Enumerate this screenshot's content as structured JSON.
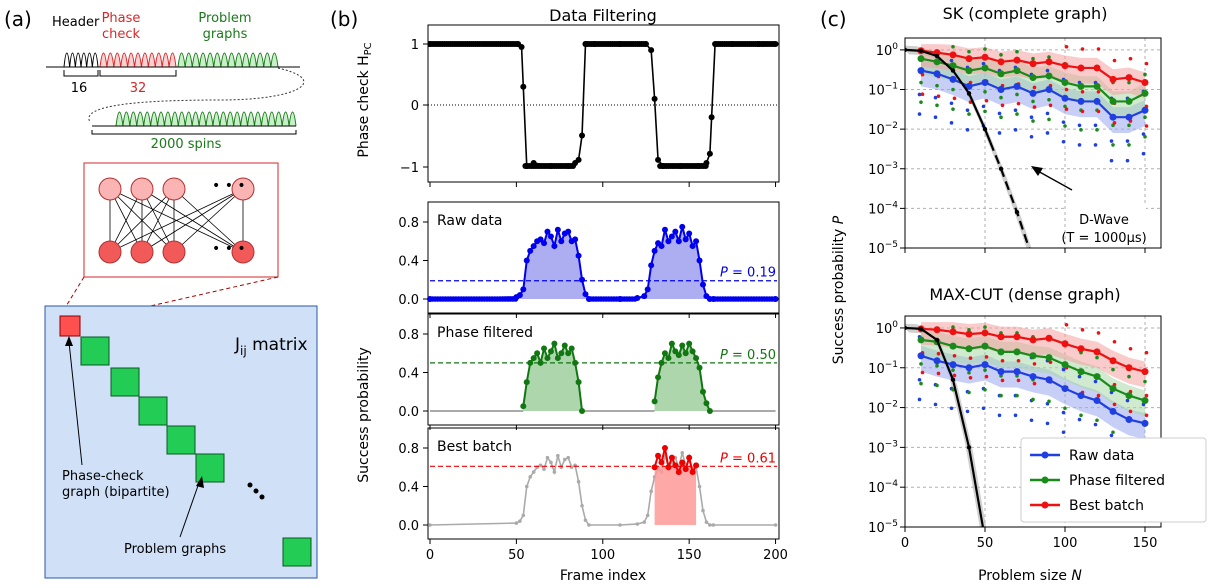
{
  "panel_a": {
    "label": "(a)",
    "header": "Header",
    "phase_check": [
      "Phase",
      "check"
    ],
    "problem_graphs_top": [
      "Problem",
      "graphs"
    ],
    "count_16": "16",
    "count_32": "32",
    "spins": "2000 spins",
    "matrix": "J",
    "matrix_sub": "ij",
    "matrix_suffix": " matrix",
    "phase_check_graph": [
      "Phase-check",
      "graph (bipartite)"
    ],
    "problem_graphs": "Problem graphs",
    "ellipsis": "• • •",
    "colors": {
      "header": "#000000",
      "phase": "#d62728",
      "problem": "#1a7a1a",
      "matrix_bg": "#cfe0f7",
      "block": "#22cc55",
      "red_block": "#ff5050"
    }
  },
  "panel_b": {
    "label": "(b)",
    "title": "Data Filtering",
    "top_ylabel": "Phase check H",
    "top_ylabel_sub": "PC",
    "ylabel": "Success probability",
    "xlabel": "Frame index",
    "xticks": [
      "0",
      "50",
      "100",
      "150",
      "200"
    ],
    "top_yticks": [
      "1",
      "0",
      "−1"
    ],
    "yticks": [
      "0.0",
      "0.4",
      "0.8"
    ],
    "sub": [
      {
        "label": "Raw data",
        "p_label": "P",
        "p_value": " = 0.19",
        "color": "#0000ee",
        "fill": "#9999ee"
      },
      {
        "label": "Phase filtered",
        "p_label": "P",
        "p_value": " = 0.50",
        "color": "#117711",
        "fill": "#99cc99"
      },
      {
        "label": "Best batch",
        "p_label": "P",
        "p_value": " = 0.61",
        "color": "#ee0000",
        "fill": "#ff9999"
      }
    ]
  },
  "panel_c": {
    "label": "(c)",
    "title_top": "SK (complete graph)",
    "title_bottom": "MAX-CUT (dense graph)",
    "ylabel": "Success probability",
    "ylabel_var": "P",
    "xlabel": "Problem size",
    "xlabel_var": "N",
    "xticks": [
      "0",
      "50",
      "100",
      "150"
    ],
    "ytick_base": "10",
    "ytick_exps": [
      "0",
      "−1",
      "−2",
      "−3",
      "−4",
      "−5"
    ],
    "annotation": [
      "D-Wave",
      "(T = 1000μs)"
    ],
    "legend": [
      {
        "label": "Raw data",
        "color": "#1f3fe0"
      },
      {
        "label": "Phase filtered",
        "color": "#1a8a1a"
      },
      {
        "label": "Best batch",
        "color": "#ee1111"
      }
    ]
  },
  "chart_data": [
    {
      "type": "line",
      "title": "Data Filtering",
      "xlabel": "",
      "ylabel": "Phase check H_PC",
      "xlim": [
        0,
        200
      ],
      "ylim": [
        -1.2,
        1.2
      ],
      "series": [
        {
          "name": "",
          "x": [
            0,
            51,
            53,
            54,
            56,
            60,
            70,
            80,
            84,
            86,
            88,
            90,
            95,
            110,
            125,
            128,
            130,
            132,
            135,
            145,
            155,
            160,
            162,
            163,
            165,
            175,
            190,
            200
          ],
          "values": [
            1,
            1,
            0.95,
            0.3,
            -1,
            -0.95,
            -1,
            -1,
            -0.95,
            -0.9,
            -0.5,
            1,
            1,
            1,
            1,
            0.9,
            0.1,
            -0.9,
            -1,
            -1,
            -1,
            -0.95,
            -0.8,
            -0.2,
            1,
            1,
            1,
            1
          ]
        }
      ]
    },
    {
      "type": "area",
      "title": "",
      "ylabel": "Success probability",
      "xlim": [
        0,
        200
      ],
      "ylim": [
        0,
        0.9
      ],
      "series": [
        {
          "name": "Raw data",
          "x": [
            0,
            50,
            52,
            54,
            56,
            58,
            60,
            62,
            64,
            66,
            68,
            70,
            72,
            74,
            76,
            78,
            80,
            82,
            84,
            86,
            88,
            90,
            92,
            110,
            120,
            124,
            126,
            128,
            130,
            132,
            134,
            136,
            138,
            140,
            142,
            144,
            146,
            148,
            150,
            152,
            154,
            156,
            158,
            160,
            162,
            164,
            200
          ],
          "values": [
            0,
            0.02,
            0.04,
            0.1,
            0.4,
            0.5,
            0.55,
            0.6,
            0.62,
            0.58,
            0.7,
            0.65,
            0.55,
            0.72,
            0.6,
            0.68,
            0.7,
            0.6,
            0.62,
            0.45,
            0.2,
            0.05,
            0,
            0,
            0.01,
            0.03,
            0.1,
            0.35,
            0.5,
            0.58,
            0.55,
            0.72,
            0.6,
            0.65,
            0.7,
            0.6,
            0.75,
            0.62,
            0.68,
            0.55,
            0.6,
            0.4,
            0.15,
            0.03,
            0,
            0,
            0
          ]
        },
        {
          "name": "P",
          "value": 0.19
        }
      ]
    },
    {
      "type": "area",
      "ylabel": "Success probability",
      "xlim": [
        0,
        200
      ],
      "ylim": [
        0,
        0.9
      ],
      "series": [
        {
          "name": "Phase filtered",
          "x": [
            54,
            56,
            58,
            60,
            62,
            64,
            66,
            68,
            70,
            72,
            74,
            76,
            78,
            80,
            82,
            84,
            86,
            88,
            130,
            132,
            134,
            136,
            138,
            140,
            142,
            144,
            146,
            148,
            150,
            152,
            154,
            156,
            158,
            160,
            162
          ],
          "values": [
            0.05,
            0.3,
            0.5,
            0.55,
            0.6,
            0.5,
            0.65,
            0.55,
            0.62,
            0.7,
            0.55,
            0.6,
            0.68,
            0.6,
            0.65,
            0.5,
            0.3,
            0,
            0.1,
            0.35,
            0.5,
            0.6,
            0.55,
            0.7,
            0.62,
            0.58,
            0.68,
            0.6,
            0.7,
            0.62,
            0.55,
            0.45,
            0.2,
            0.08,
            0
          ]
        },
        {
          "name": "P",
          "value": 0.5
        }
      ]
    },
    {
      "type": "area",
      "ylabel": "Success probability",
      "xlim": [
        0,
        200
      ],
      "ylim": [
        0,
        0.9
      ],
      "series": [
        {
          "name": "Best batch",
          "x": [
            130,
            132,
            134,
            136,
            138,
            140,
            142,
            144,
            146,
            148,
            150,
            152,
            154
          ],
          "values": [
            0.6,
            0.72,
            0.65,
            0.8,
            0.6,
            0.7,
            0.62,
            0.55,
            0.65,
            0.58,
            0.7,
            0.55,
            0.62
          ]
        },
        {
          "name": "P",
          "value": 0.61
        }
      ]
    },
    {
      "type": "line",
      "title": "SK (complete graph)",
      "xlabel": "",
      "ylabel": "Success probability P",
      "yscale": "log",
      "xlim": [
        0,
        160
      ],
      "ylim": [
        1e-05,
        2
      ],
      "grid": true,
      "series": [
        {
          "name": "Best batch",
          "x": [
            10,
            20,
            30,
            40,
            50,
            60,
            70,
            80,
            90,
            100,
            110,
            120,
            130,
            140,
            150
          ],
          "values": [
            0.95,
            0.85,
            0.75,
            0.6,
            0.65,
            0.5,
            0.55,
            0.45,
            0.5,
            0.4,
            0.35,
            0.35,
            0.18,
            0.2,
            0.15
          ]
        },
        {
          "name": "Phase filtered",
          "x": [
            10,
            20,
            30,
            40,
            50,
            60,
            70,
            80,
            90,
            100,
            110,
            120,
            130,
            140,
            150
          ],
          "values": [
            0.6,
            0.5,
            0.4,
            0.3,
            0.35,
            0.25,
            0.3,
            0.2,
            0.22,
            0.15,
            0.12,
            0.12,
            0.05,
            0.05,
            0.08
          ]
        },
        {
          "name": "Raw data",
          "x": [
            10,
            20,
            30,
            40,
            50,
            60,
            70,
            80,
            90,
            100,
            110,
            120,
            130,
            140,
            150
          ],
          "values": [
            0.3,
            0.25,
            0.18,
            0.12,
            0.15,
            0.1,
            0.12,
            0.08,
            0.1,
            0.06,
            0.05,
            0.05,
            0.02,
            0.02,
            0.03
          ]
        },
        {
          "name": "D-Wave",
          "x": [
            0,
            10,
            20,
            30,
            40,
            50,
            60,
            70,
            80
          ],
          "values": [
            1,
            0.95,
            0.7,
            0.3,
            0.08,
            0.01,
            0.001,
            8e-05,
            5e-06
          ]
        }
      ]
    },
    {
      "type": "line",
      "title": "MAX-CUT (dense graph)",
      "xlabel": "Problem size N",
      "ylabel": "Success probability P",
      "yscale": "log",
      "xlim": [
        0,
        160
      ],
      "ylim": [
        1e-05,
        2
      ],
      "grid": true,
      "legend": "bottom-right",
      "series": [
        {
          "name": "Best batch",
          "x": [
            10,
            20,
            30,
            40,
            50,
            60,
            70,
            80,
            90,
            100,
            110,
            120,
            130,
            140,
            150
          ],
          "values": [
            0.95,
            0.9,
            0.8,
            0.7,
            0.75,
            0.6,
            0.6,
            0.5,
            0.55,
            0.4,
            0.3,
            0.25,
            0.15,
            0.1,
            0.08
          ]
        },
        {
          "name": "Phase filtered",
          "x": [
            10,
            20,
            30,
            40,
            50,
            60,
            70,
            80,
            90,
            100,
            110,
            120,
            130,
            140,
            150
          ],
          "values": [
            0.5,
            0.45,
            0.35,
            0.3,
            0.35,
            0.25,
            0.25,
            0.2,
            0.18,
            0.12,
            0.08,
            0.06,
            0.03,
            0.02,
            0.015
          ]
        },
        {
          "name": "Raw data",
          "x": [
            10,
            20,
            30,
            40,
            50,
            60,
            70,
            80,
            90,
            100,
            110,
            120,
            130,
            140,
            150
          ],
          "values": [
            0.2,
            0.15,
            0.12,
            0.1,
            0.12,
            0.08,
            0.08,
            0.06,
            0.05,
            0.03,
            0.02,
            0.015,
            0.008,
            0.005,
            0.004
          ]
        },
        {
          "name": "D-Wave",
          "x": [
            0,
            10,
            20,
            30,
            40,
            50
          ],
          "values": [
            1,
            0.95,
            0.5,
            0.05,
            0.001,
            5e-06
          ]
        }
      ]
    }
  ]
}
